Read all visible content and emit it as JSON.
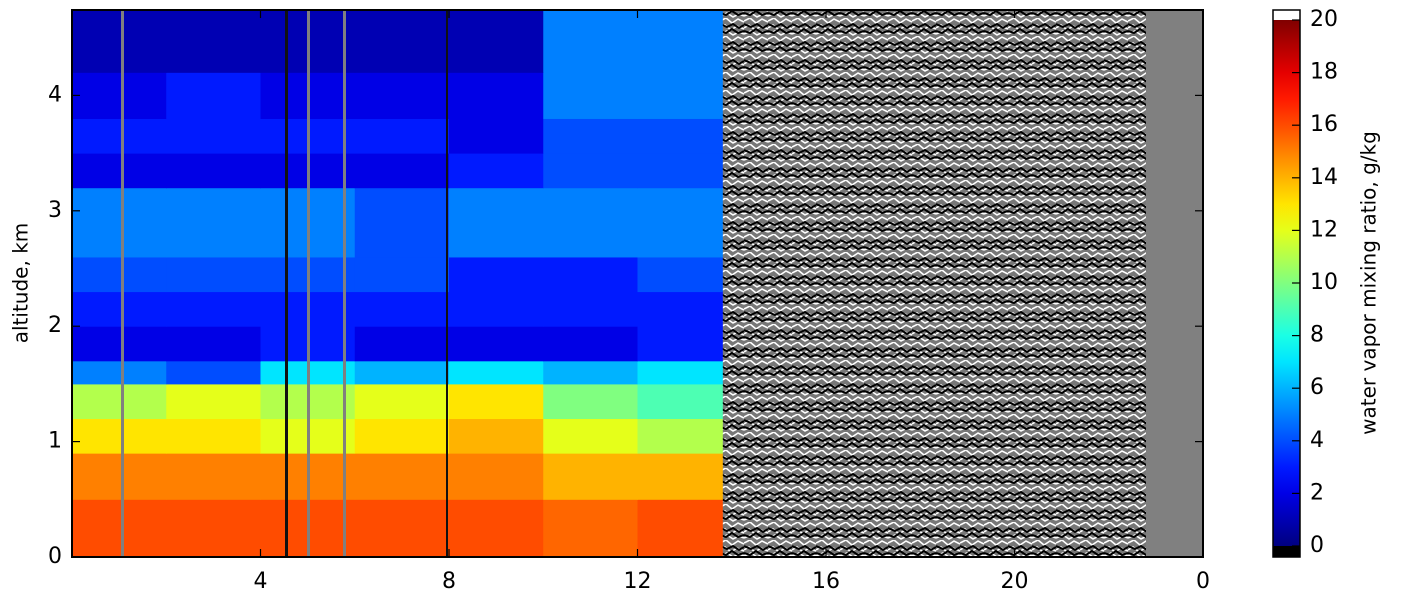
{
  "chart_data": {
    "type": "heatmap",
    "colormap": "jet",
    "x_edges": [
      0,
      2,
      4,
      6,
      8,
      10,
      12,
      13.8
    ],
    "y_edges": [
      0,
      0.5,
      0.9,
      1.2,
      1.5,
      1.7,
      2.0,
      2.3,
      2.6,
      3.2,
      3.5,
      3.8,
      4.2,
      4.74
    ],
    "z": [
      [
        16,
        16,
        16,
        16,
        16,
        15.5,
        16
      ],
      [
        15,
        15,
        15,
        15,
        15,
        14,
        14
      ],
      [
        13,
        13,
        12,
        13,
        14,
        12,
        11
      ],
      [
        11,
        12,
        11,
        12,
        13,
        10,
        9
      ],
      [
        5,
        4,
        7,
        6,
        7,
        6,
        7
      ],
      [
        2,
        2,
        3,
        2,
        2,
        2,
        3
      ],
      [
        3,
        3,
        3,
        3,
        3,
        3,
        3
      ],
      [
        4,
        4,
        4,
        4,
        3,
        3,
        4
      ],
      [
        5,
        5,
        5,
        4,
        5,
        5,
        5
      ],
      [
        2,
        2,
        2,
        2,
        3,
        4,
        4
      ],
      [
        3,
        3,
        3,
        3,
        2,
        4,
        4
      ],
      [
        2,
        3,
        2,
        2,
        2,
        5,
        5
      ],
      [
        1,
        1,
        1,
        1,
        1,
        5,
        5
      ]
    ],
    "xlim": [
      0,
      24
    ],
    "xticks": [
      4,
      8,
      12,
      16,
      20,
      {
        "value": 24,
        "label": "0"
      }
    ],
    "ylim": [
      0,
      4.74
    ],
    "yticks": [
      0,
      1,
      2,
      3,
      4
    ],
    "ylabel": "altitude, km",
    "colorbar": {
      "label": "water vapor mixing ratio, g/kg",
      "clim": [
        0,
        20
      ],
      "ticks": [
        0,
        2,
        4,
        6,
        8,
        10,
        12,
        14,
        16,
        18,
        20
      ]
    }
  }
}
